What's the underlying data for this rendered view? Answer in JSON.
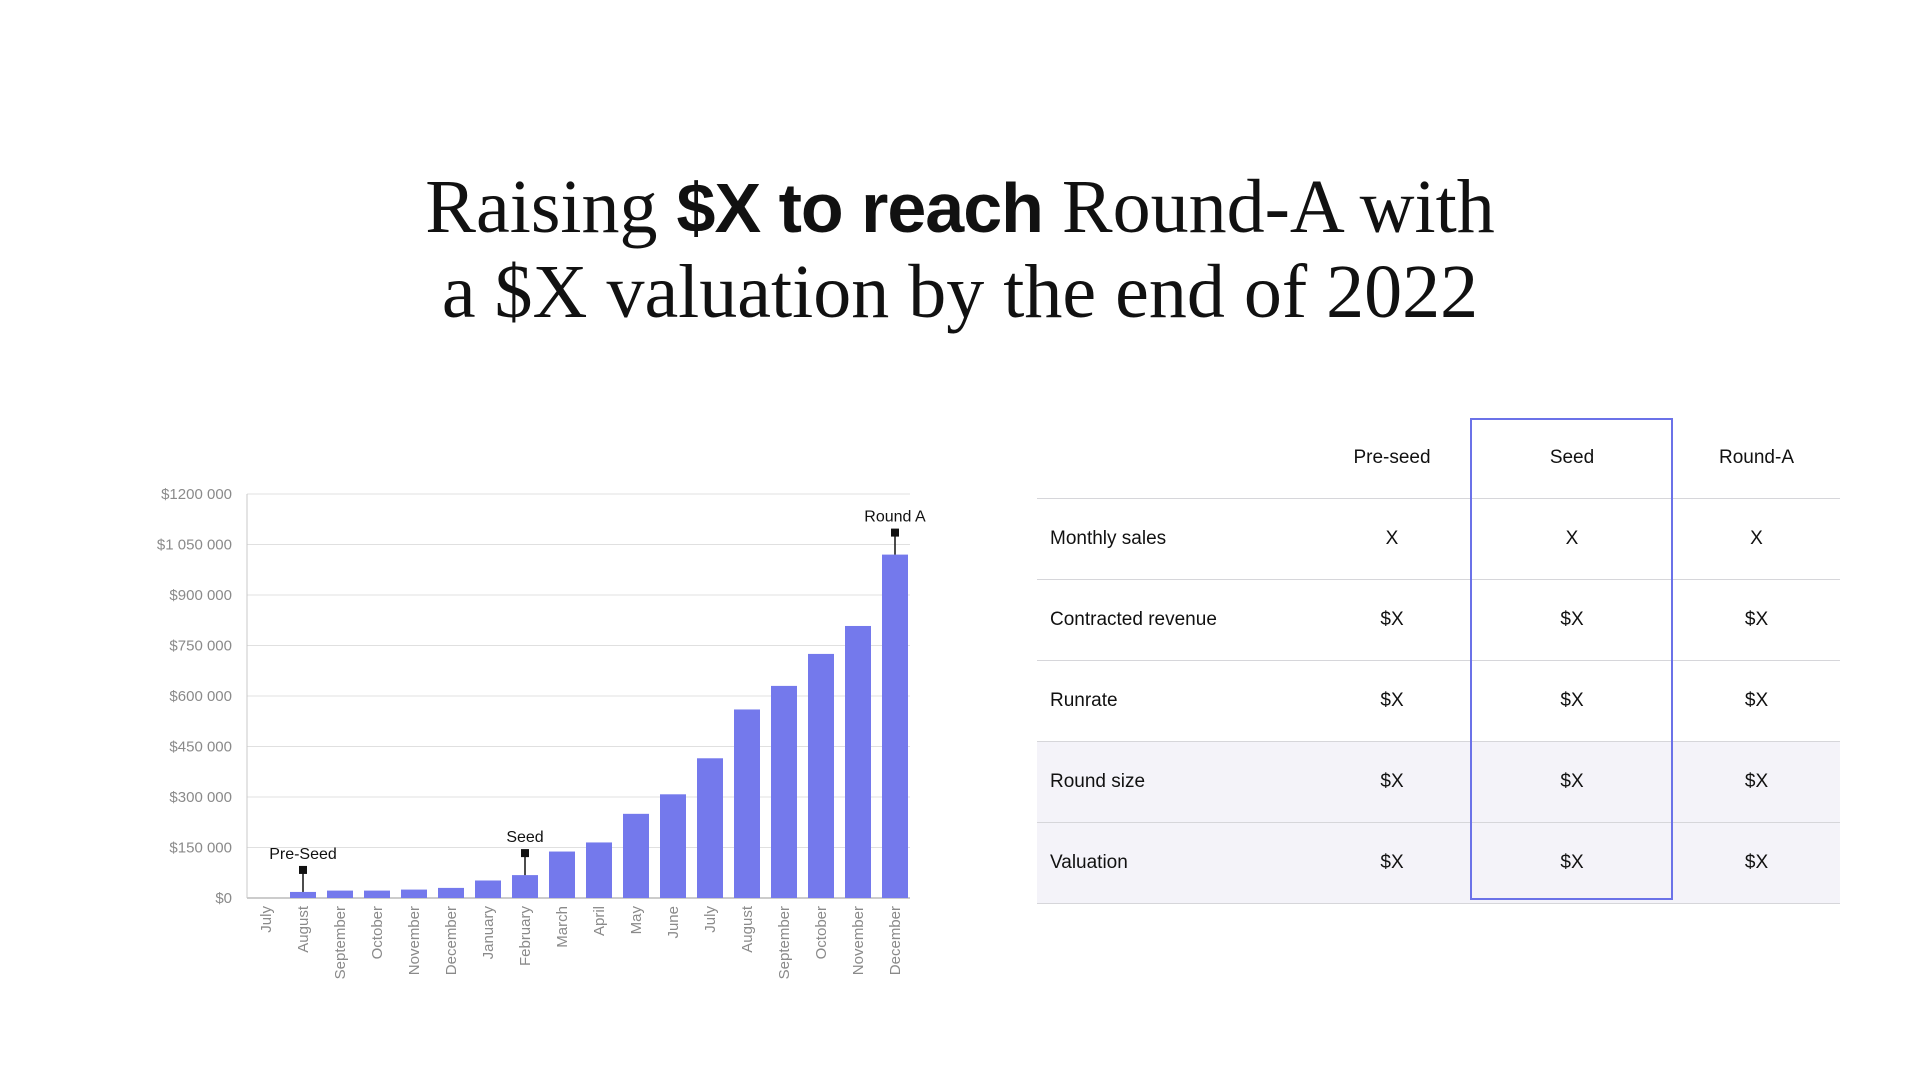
{
  "title": {
    "line1_a": "Raising ",
    "line1_bold": "$X to reach",
    "line1_b": " Round-A with",
    "line2": "a $X valuation by the end of 2022"
  },
  "chart_data": {
    "type": "bar",
    "categories": [
      "July",
      "August",
      "September",
      "October",
      "November",
      "December",
      "January",
      "February",
      "March",
      "April",
      "May",
      "June",
      "July",
      "August",
      "September",
      "October",
      "November",
      "December"
    ],
    "values": [
      0,
      18000,
      22000,
      22000,
      25000,
      30000,
      52000,
      68000,
      138000,
      165000,
      250000,
      308000,
      415000,
      560000,
      630000,
      725000,
      808000,
      1020000
    ],
    "ylim": [
      0,
      1200000
    ],
    "yticks": [
      0,
      150000,
      300000,
      450000,
      600000,
      750000,
      900000,
      1050000,
      1200000
    ],
    "ytick_labels": [
      "$0",
      "$150 000",
      "$300 000",
      "$450 000",
      "$600 000",
      "$750 000",
      "$900 000",
      "$1 050 000",
      "$1200 000"
    ],
    "annotations": [
      {
        "label": "Pre-Seed",
        "index": 1
      },
      {
        "label": "Seed",
        "index": 7
      },
      {
        "label": "Round A",
        "index": 17
      }
    ],
    "bar_color": "#7479ec",
    "grid": true
  },
  "table": {
    "columns": [
      "",
      "Pre-seed",
      "Seed",
      "Round-A"
    ],
    "rows": [
      {
        "label": "Monthly sales",
        "values": [
          "X",
          "X",
          "X"
        ]
      },
      {
        "label": "Contracted revenue",
        "values": [
          "$X",
          "$X",
          "$X"
        ]
      },
      {
        "label": "Runrate",
        "values": [
          "$X",
          "$X",
          "$X"
        ]
      },
      {
        "label": "Round size",
        "values": [
          "$X",
          "$X",
          "$X"
        ]
      },
      {
        "label": "Valuation",
        "values": [
          "$X",
          "$X",
          "$X"
        ]
      }
    ],
    "highlight_color": "#6b72e8",
    "shade_color": "#f4f3f9"
  }
}
